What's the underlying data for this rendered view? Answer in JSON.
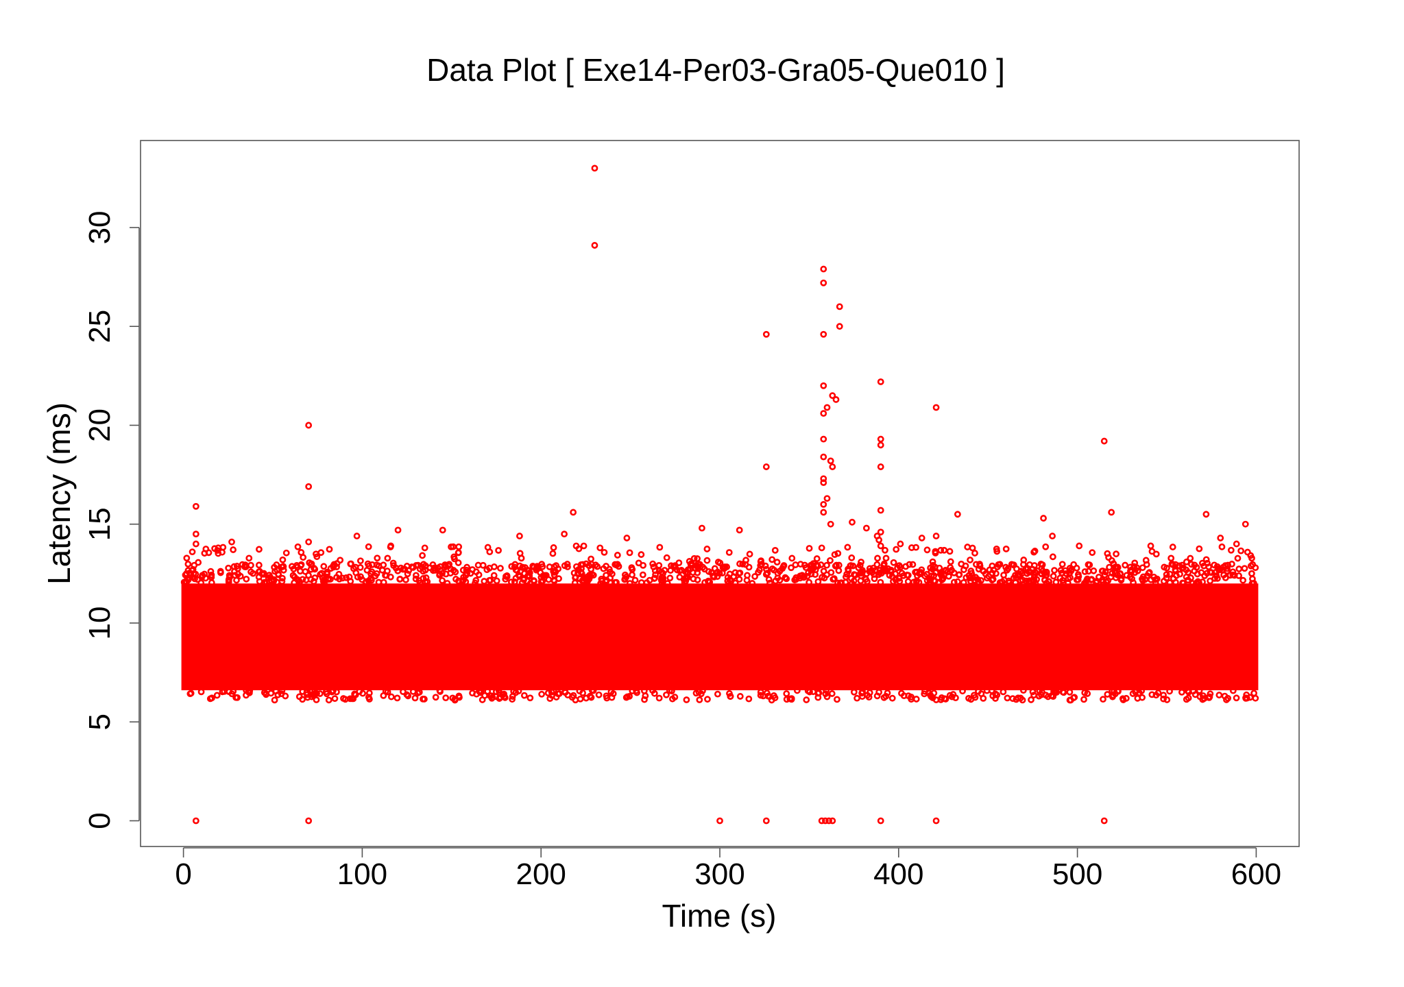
{
  "chart_data": {
    "type": "scatter",
    "title": "Data Plot [ Exe14-Per03-Gra05-Que010 ]",
    "xlabel": "Time (s)",
    "ylabel": "Latency (ms)",
    "xlim": [
      -24,
      624
    ],
    "ylim": [
      -1.3,
      34.4
    ],
    "xticks": [
      0,
      100,
      200,
      300,
      400,
      500,
      600
    ],
    "yticks": [
      0,
      5,
      10,
      15,
      20,
      25,
      30
    ],
    "grid": false,
    "legend": "none",
    "marker": "open-circle",
    "color": "#ff0000",
    "series": [
      {
        "dense_band": {
          "x_range": [
            0,
            600
          ],
          "y_range": [
            6.6,
            12.0
          ],
          "description_points": "thousands of overlapping points"
        },
        "points": [
          [
            7,
            0
          ],
          [
            70,
            0
          ],
          [
            300,
            0
          ],
          [
            326,
            0
          ],
          [
            357,
            0
          ],
          [
            359,
            0
          ],
          [
            361,
            0
          ],
          [
            363,
            0
          ],
          [
            390,
            0
          ],
          [
            421,
            0
          ],
          [
            515,
            0
          ],
          [
            230,
            33.0
          ],
          [
            230,
            29.1
          ],
          [
            358,
            27.9
          ],
          [
            358,
            27.2
          ],
          [
            367,
            26.0
          ],
          [
            367,
            25.0
          ],
          [
            326,
            24.6
          ],
          [
            358,
            24.6
          ],
          [
            390,
            22.2
          ],
          [
            358,
            22.0
          ],
          [
            363,
            21.5
          ],
          [
            365,
            21.3
          ],
          [
            360,
            20.9
          ],
          [
            358,
            20.6
          ],
          [
            421,
            20.9
          ],
          [
            70,
            20.0
          ],
          [
            358,
            19.3
          ],
          [
            390,
            19.3
          ],
          [
            390,
            19.0
          ],
          [
            515,
            19.2
          ],
          [
            358,
            18.4
          ],
          [
            362,
            18.2
          ],
          [
            390,
            17.9
          ],
          [
            326,
            17.9
          ],
          [
            363,
            17.9
          ],
          [
            358,
            17.3
          ],
          [
            358,
            17.1
          ],
          [
            70,
            16.9
          ],
          [
            360,
            16.3
          ],
          [
            358,
            16.0
          ],
          [
            7,
            15.9
          ],
          [
            358,
            15.6
          ],
          [
            390,
            15.7
          ],
          [
            218,
            15.6
          ],
          [
            433,
            15.5
          ],
          [
            519,
            15.6
          ],
          [
            572,
            15.5
          ],
          [
            481,
            15.3
          ],
          [
            374,
            15.1
          ],
          [
            362,
            15.0
          ],
          [
            594,
            15.0
          ],
          [
            382,
            14.8
          ],
          [
            290,
            14.8
          ],
          [
            311,
            14.7
          ],
          [
            120,
            14.7
          ],
          [
            145,
            14.7
          ],
          [
            7,
            14.5
          ],
          [
            213,
            14.5
          ],
          [
            390,
            14.6
          ],
          [
            388,
            14.4
          ],
          [
            188,
            14.4
          ],
          [
            248,
            14.3
          ],
          [
            97,
            14.4
          ],
          [
            580,
            14.3
          ],
          [
            421,
            14.4
          ],
          [
            413,
            14.3
          ],
          [
            486,
            14.4
          ],
          [
            389,
            14.2
          ],
          [
            70,
            14.1
          ],
          [
            27,
            14.1
          ],
          [
            7,
            14.0
          ],
          [
            541,
            13.9
          ],
          [
            589,
            14.0
          ],
          [
            501,
            13.9
          ],
          [
            390,
            13.9
          ],
          [
            401,
            14.0
          ],
          [
            357,
            13.8
          ],
          [
            116,
            13.9
          ],
          [
            135,
            13.8
          ],
          [
            233,
            13.8
          ]
        ]
      }
    ]
  }
}
